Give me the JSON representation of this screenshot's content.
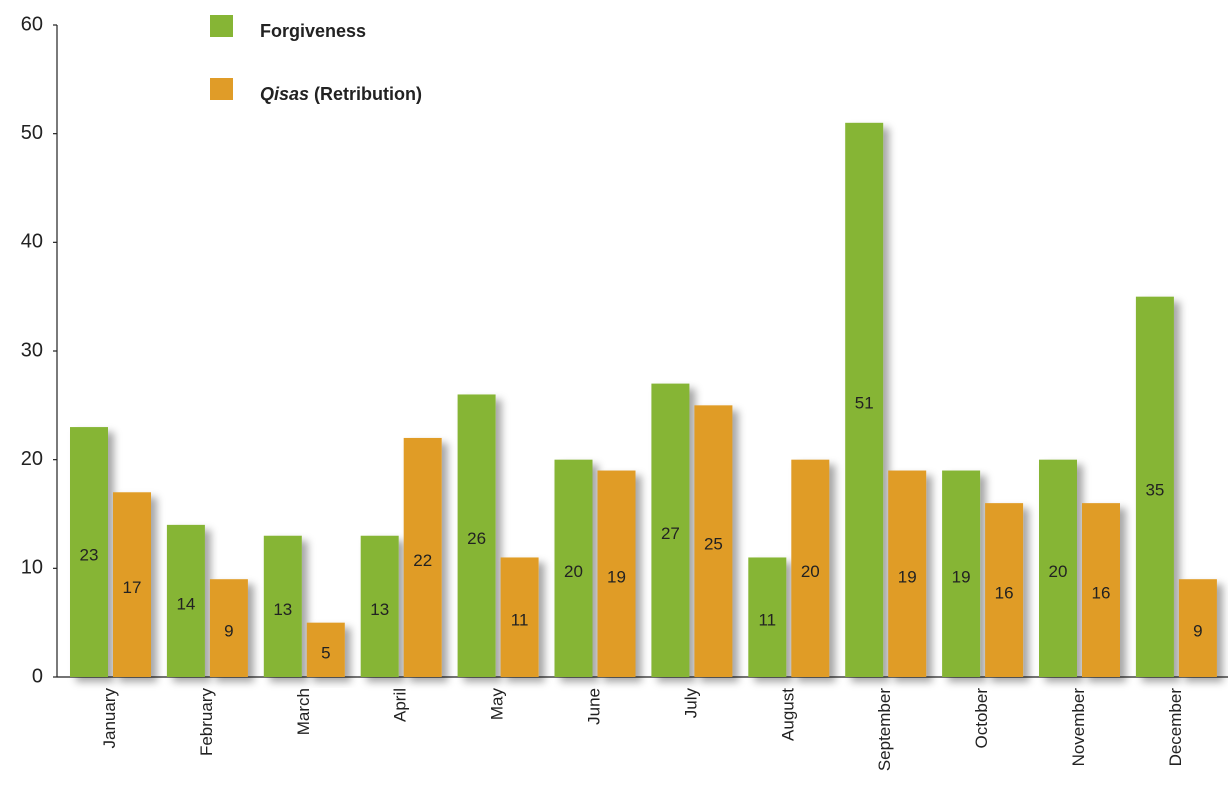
{
  "chart_data": {
    "type": "bar",
    "categories": [
      "January",
      "February",
      "March",
      "April",
      "May",
      "June",
      "July",
      "August",
      "September",
      "October",
      "November",
      "December"
    ],
    "series": [
      {
        "name": "Forgiveness",
        "color": "#86b535",
        "values": [
          23,
          14,
          13,
          13,
          26,
          20,
          27,
          11,
          51,
          19,
          20,
          35
        ]
      },
      {
        "name": "Qisas (Retribution)",
        "color": "#e09c28",
        "values": [
          17,
          9,
          5,
          22,
          11,
          19,
          25,
          20,
          19,
          16,
          16,
          9
        ]
      }
    ],
    "ylim": [
      0,
      60
    ],
    "yticks": [
      0,
      10,
      20,
      30,
      40,
      50,
      60
    ],
    "grid": false,
    "legend": "top-left"
  }
}
